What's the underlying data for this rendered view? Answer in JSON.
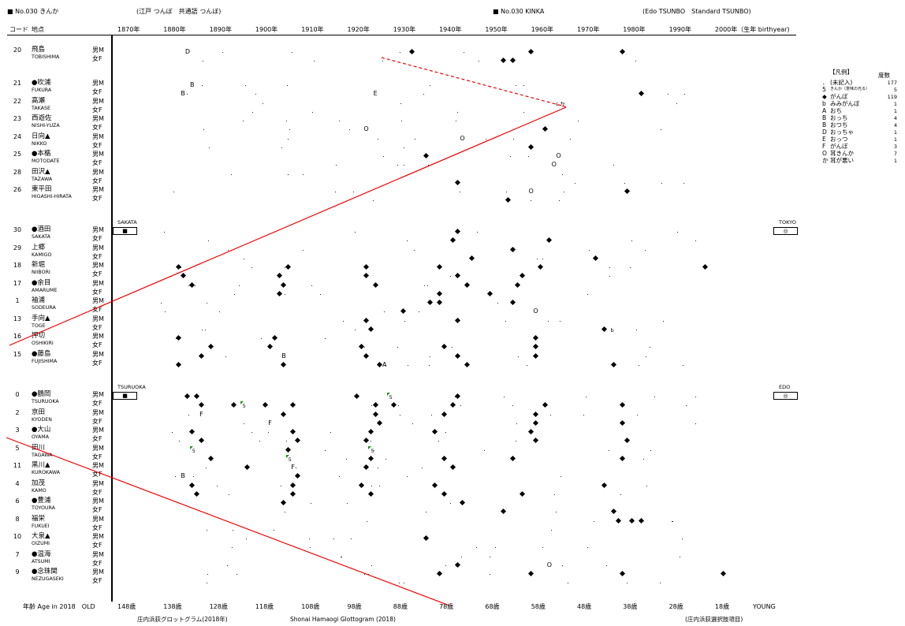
{
  "header": {
    "left_title": "■ No.030 きんか",
    "left_subtitle": "(江戸 つんぼ　共通語 つんぼ)",
    "right_title": "■ No.030 KINKA",
    "right_subtitle": "(Edo TSUNBO　Standard TSUNBO)"
  },
  "col_headers": {
    "code": "コード",
    "place": "地点"
  },
  "year_axis": [
    "1870年",
    "1880年",
    "1890年",
    "1900年",
    "1910年",
    "1920年",
    "1930年",
    "1940年",
    "1950年",
    "1960年",
    "1970年",
    "1980年",
    "1990年",
    "2000年（生年 birthyear)"
  ],
  "age_axis": {
    "prefix": "年齢 Age in 2018　OLD",
    "ticks": [
      "148歳",
      "138歳",
      "128歳",
      "118歳",
      "108歳",
      "98歳",
      "88歳",
      "78歳",
      "68歳",
      "58歳",
      "48歳",
      "38歳",
      "28歳",
      "18歳"
    ],
    "suffix": "YOUNG"
  },
  "footer": {
    "left": "庄内浜荻グロットグラム(2018年)",
    "center": "Shonai Hamaogi Glottogram (2018)",
    "right": "(庄内浜荻選択肢項目)"
  },
  "city_boxes": {
    "sakata": {
      "label": "SAKATA",
      "symbol": "■"
    },
    "tokyo": {
      "label": "TOKYO",
      "symbol": "◎"
    },
    "tsuruoka": {
      "label": "TSURUOKA",
      "symbol": "■"
    },
    "edo": {
      "label": "EDO",
      "symbol": "◎"
    }
  },
  "sex_labels": {
    "male": "男M",
    "female": "女F"
  },
  "legend": {
    "title": "【凡例】",
    "count_header": "度数",
    "items": [
      {
        "symbol": "．",
        "label": "(未記入)",
        "count": "177"
      },
      {
        "symbol": "5",
        "label": "きんか（意味の光る）",
        "count": "5"
      },
      {
        "symbol": "◆",
        "label": "がんぼ",
        "count": "119"
      },
      {
        "symbol": "b",
        "label": "みみがんぼ",
        "count": "1"
      },
      {
        "symbol": "A",
        "label": "おち",
        "count": "1"
      },
      {
        "symbol": "B",
        "label": "おっち",
        "count": "4"
      },
      {
        "symbol": "B",
        "label": "おつち",
        "count": "4"
      },
      {
        "symbol": "D",
        "label": "おっちゃ",
        "count": "1"
      },
      {
        "symbol": "E",
        "label": "おっつ",
        "count": "1"
      },
      {
        "symbol": "F",
        "label": "がんぼ",
        "count": "3"
      },
      {
        "symbol": "O",
        "label": "耳きんか",
        "count": "7"
      },
      {
        "symbol": "か",
        "label": "耳が悪い",
        "count": "1"
      }
    ]
  },
  "groups": [
    {
      "code": "20",
      "name": "飛島",
      "romaji": "TOBISHIMA"
    },
    {
      "code": "21",
      "name": "●吹浦",
      "romaji": "FUKURA"
    },
    {
      "code": "22",
      "name": "高瀬",
      "romaji": "TAKASE"
    },
    {
      "code": "23",
      "name": "西遊佐",
      "romaji": "NISHI-YUZA"
    },
    {
      "code": "24",
      "name": "日向▲",
      "romaji": "NIKKO"
    },
    {
      "code": "25",
      "name": "●本楯",
      "romaji": "MOTODATE"
    },
    {
      "code": "28",
      "name": "田沢▲",
      "romaji": "TAZAWA"
    },
    {
      "code": "26",
      "name": "東平田",
      "romaji": "HIGASHI-HIRATA"
    },
    {
      "code": "30",
      "name": "●酒田",
      "romaji": "SAKATA"
    },
    {
      "code": "29",
      "name": "上郷",
      "romaji": "KAMIGO"
    },
    {
      "code": "18",
      "name": "新堀",
      "romaji": "NIIBORI"
    },
    {
      "code": "17",
      "name": "●余目",
      "romaji": "AMARUME"
    },
    {
      "code": "1",
      "name": "袖浦",
      "romaji": "SODEURA"
    },
    {
      "code": "13",
      "name": "手向▲",
      "romaji": "TOGE"
    },
    {
      "code": "16",
      "name": "押切",
      "romaji": "OSHIKIRI"
    },
    {
      "code": "15",
      "name": "●藤島",
      "romaji": "FUJISHIMA"
    },
    {
      "code": "0",
      "name": "●鶴岡",
      "romaji": "TSURUOKA"
    },
    {
      "code": "2",
      "name": "京田",
      "romaji": "KYODEN"
    },
    {
      "code": "3",
      "name": "●大山",
      "romaji": "OYAMA"
    },
    {
      "code": "5",
      "name": "田川",
      "romaji": "TAGAWA"
    },
    {
      "code": "11",
      "name": "黒川▲",
      "romaji": "KUROKAWA"
    },
    {
      "code": "4",
      "name": "加茂",
      "romaji": "KAMO"
    },
    {
      "code": "6",
      "name": "●豊浦",
      "romaji": "TOYOURA"
    },
    {
      "code": "8",
      "name": "福栄",
      "romaji": "FUKUEI"
    },
    {
      "code": "10",
      "name": "大泉▲",
      "romaji": "OIZUMI"
    },
    {
      "code": "7",
      "name": "●温海",
      "romaji": "ATSUMI"
    },
    {
      "code": "9",
      "name": "●念珠関",
      "romaji": "NEZUGASEKI"
    }
  ],
  "points": [
    {
      "g": 0,
      "r": 0,
      "y": 1886,
      "s": "D"
    },
    {
      "g": 0,
      "r": 0,
      "y": 1935,
      "s": "◆"
    },
    {
      "g": 0,
      "r": 0,
      "y": 1961,
      "s": "◆"
    },
    {
      "g": 0,
      "r": 0,
      "y": 1981,
      "s": "◆"
    },
    {
      "g": 0,
      "r": 1,
      "y": 1955,
      "s": "◆"
    },
    {
      "g": 0,
      "r": 1,
      "y": 1957,
      "s": "◆"
    },
    {
      "g": 1,
      "r": 0,
      "y": 1887,
      "s": "B"
    },
    {
      "g": 1,
      "r": 1,
      "y": 1885,
      "s": "B"
    },
    {
      "g": 1,
      "r": 1,
      "y": 1927,
      "s": "E"
    },
    {
      "g": 1,
      "r": 1,
      "y": 1985,
      "s": "◆"
    },
    {
      "g": 3,
      "r": 1,
      "y": 1925,
      "s": "O"
    },
    {
      "g": 3,
      "r": 1,
      "y": 1964,
      "s": "◆"
    },
    {
      "g": 4,
      "r": 0,
      "y": 1946,
      "s": "O"
    },
    {
      "g": 4,
      "r": 1,
      "y": 1961,
      "s": "◆"
    },
    {
      "g": 5,
      "r": 0,
      "y": 1938,
      "s": "◆"
    },
    {
      "g": 5,
      "r": 0,
      "y": 1967,
      "s": "O"
    },
    {
      "g": 5,
      "r": 1,
      "y": 1966,
      "s": "O"
    },
    {
      "g": 6,
      "r": 1,
      "y": 1945,
      "s": "◆"
    },
    {
      "g": 7,
      "r": 0,
      "y": 1961,
      "s": "O"
    },
    {
      "g": 7,
      "r": 0,
      "y": 1982,
      "s": "◆"
    },
    {
      "g": 7,
      "r": 1,
      "y": 1956,
      "s": "◆"
    },
    {
      "g": 8,
      "r": 0,
      "y": 1945,
      "s": "◆"
    },
    {
      "g": 8,
      "r": 1,
      "y": 1944,
      "s": "◆"
    },
    {
      "g": 8,
      "r": 1,
      "y": 1965,
      "s": "◆"
    },
    {
      "g": 9,
      "r": 0,
      "y": 1957,
      "s": "◆"
    },
    {
      "g": 9,
      "r": 1,
      "y": 1948,
      "s": "◆"
    },
    {
      "g": 9,
      "r": 1,
      "y": 1975,
      "s": "◆"
    },
    {
      "g": 10,
      "r": 0,
      "y": 1884,
      "s": "◆"
    },
    {
      "g": 10,
      "r": 0,
      "y": 1908,
      "s": "◆"
    },
    {
      "g": 10,
      "r": 0,
      "y": 1925,
      "s": "◆"
    },
    {
      "g": 10,
      "r": 0,
      "y": 1941,
      "s": "◆"
    },
    {
      "g": 10,
      "r": 0,
      "y": 1963,
      "s": "◆"
    },
    {
      "g": 10,
      "r": 0,
      "y": 1999,
      "s": "◆"
    },
    {
      "g": 10,
      "r": 1,
      "y": 1885,
      "s": "◆"
    },
    {
      "g": 10,
      "r": 1,
      "y": 1906,
      "s": "◆"
    },
    {
      "g": 10,
      "r": 1,
      "y": 1925,
      "s": "◆"
    },
    {
      "g": 10,
      "r": 1,
      "y": 1945,
      "s": "◆"
    },
    {
      "g": 10,
      "r": 1,
      "y": 1959,
      "s": "◆"
    },
    {
      "g": 11,
      "r": 0,
      "y": 1887,
      "s": "◆"
    },
    {
      "g": 11,
      "r": 0,
      "y": 1907,
      "s": "◆"
    },
    {
      "g": 11,
      "r": 0,
      "y": 1927,
      "s": "◆"
    },
    {
      "g": 11,
      "r": 0,
      "y": 1947,
      "s": "◆"
    },
    {
      "g": 11,
      "r": 0,
      "y": 1958,
      "s": "◆"
    },
    {
      "g": 11,
      "r": 1,
      "y": 1906,
      "s": "◆"
    },
    {
      "g": 11,
      "r": 1,
      "y": 1941,
      "s": "◆"
    },
    {
      "g": 11,
      "r": 1,
      "y": 1952,
      "s": "◆"
    },
    {
      "g": 12,
      "r": 0,
      "y": 1939,
      "s": "◆"
    },
    {
      "g": 12,
      "r": 0,
      "y": 1941,
      "s": "◆"
    },
    {
      "g": 12,
      "r": 0,
      "y": 1957,
      "s": "◆"
    },
    {
      "g": 12,
      "r": 1,
      "y": 1933,
      "s": "◆"
    },
    {
      "g": 12,
      "r": 1,
      "y": 1962,
      "s": "O"
    },
    {
      "g": 13,
      "r": 0,
      "y": 1925,
      "s": "◆"
    },
    {
      "g": 13,
      "r": 0,
      "y": 1945,
      "s": "◆"
    },
    {
      "g": 13,
      "r": 1,
      "y": 1926,
      "s": "◆"
    },
    {
      "g": 13,
      "r": 1,
      "y": 1977,
      "s": "◆"
    },
    {
      "g": 14,
      "r": 0,
      "y": 1884,
      "s": "◆"
    },
    {
      "g": 14,
      "r": 0,
      "y": 1905,
      "s": "◆"
    },
    {
      "g": 14,
      "r": 0,
      "y": 1962,
      "s": "◆"
    },
    {
      "g": 14,
      "r": 1,
      "y": 1891,
      "s": "◆"
    },
    {
      "g": 14,
      "r": 1,
      "y": 1904,
      "s": "◆"
    },
    {
      "g": 14,
      "r": 1,
      "y": 1924,
      "s": "◆"
    },
    {
      "g": 14,
      "r": 1,
      "y": 1942,
      "s": "◆"
    },
    {
      "g": 14,
      "r": 1,
      "y": 1962,
      "s": "◆"
    },
    {
      "g": 15,
      "r": 0,
      "y": 1889,
      "s": "◆"
    },
    {
      "g": 15,
      "r": 0,
      "y": 1907,
      "s": "B"
    },
    {
      "g": 15,
      "r": 0,
      "y": 1925,
      "s": "◆"
    },
    {
      "g": 15,
      "r": 0,
      "y": 1945,
      "s": "◆"
    },
    {
      "g": 15,
      "r": 0,
      "y": 1962,
      "s": "◆"
    },
    {
      "g": 15,
      "r": 1,
      "y": 1884,
      "s": "◆"
    },
    {
      "g": 15,
      "r": 1,
      "y": 1907,
      "s": "◆"
    },
    {
      "g": 15,
      "r": 1,
      "y": 1928,
      "s": "◆"
    },
    {
      "g": 15,
      "r": 1,
      "y": 1929,
      "s": "A"
    },
    {
      "g": 15,
      "r": 1,
      "y": 1947,
      "s": "◆"
    },
    {
      "g": 15,
      "r": 1,
      "y": 1979,
      "s": "◆"
    },
    {
      "g": 16,
      "r": 0,
      "y": 1886,
      "s": "◆"
    },
    {
      "g": 16,
      "r": 0,
      "y": 1888,
      "s": "◆"
    },
    {
      "g": 16,
      "r": 0,
      "y": 1923,
      "s": "◆"
    },
    {
      "g": 16,
      "r": 0,
      "y": 1930,
      "s": "5"
    },
    {
      "g": 16,
      "r": 0,
      "y": 1945,
      "s": "◆"
    },
    {
      "g": 16,
      "r": 1,
      "y": 1889,
      "s": "◆"
    },
    {
      "g": 16,
      "r": 1,
      "y": 1896,
      "s": "◆"
    },
    {
      "g": 16,
      "r": 1,
      "y": 1898,
      "s": "5"
    },
    {
      "g": 16,
      "r": 1,
      "y": 1903,
      "s": "◆"
    },
    {
      "g": 16,
      "r": 1,
      "y": 1909,
      "s": "◆"
    },
    {
      "g": 16,
      "r": 1,
      "y": 1927,
      "s": "◆"
    },
    {
      "g": 16,
      "r": 1,
      "y": 1931,
      "s": "◆"
    },
    {
      "g": 16,
      "r": 1,
      "y": 1944,
      "s": "◆"
    },
    {
      "g": 16,
      "r": 1,
      "y": 1964,
      "s": "◆"
    },
    {
      "g": 16,
      "r": 1,
      "y": 1981,
      "s": "◆"
    },
    {
      "g": 17,
      "r": 0,
      "y": 1889,
      "s": "F"
    },
    {
      "g": 17,
      "r": 0,
      "y": 1907,
      "s": "◆"
    },
    {
      "g": 17,
      "r": 0,
      "y": 1927,
      "s": "◆"
    },
    {
      "g": 17,
      "r": 0,
      "y": 1942,
      "s": "◆"
    },
    {
      "g": 17,
      "r": 0,
      "y": 1962,
      "s": "◆"
    },
    {
      "g": 17,
      "r": 1,
      "y": 1904,
      "s": "F"
    },
    {
      "g": 17,
      "r": 1,
      "y": 1928,
      "s": "◆"
    },
    {
      "g": 17,
      "r": 1,
      "y": 1962,
      "s": "◆"
    },
    {
      "g": 17,
      "r": 1,
      "y": 1981,
      "s": "◆"
    },
    {
      "g": 18,
      "r": 0,
      "y": 1887,
      "s": "◆"
    },
    {
      "g": 18,
      "r": 0,
      "y": 1909,
      "s": "◆"
    },
    {
      "g": 18,
      "r": 0,
      "y": 1926,
      "s": "◆"
    },
    {
      "g": 18,
      "r": 0,
      "y": 1940,
      "s": "◆"
    },
    {
      "g": 18,
      "r": 0,
      "y": 1961,
      "s": "◆"
    },
    {
      "g": 18,
      "r": 1,
      "y": 1889,
      "s": "◆"
    },
    {
      "g": 18,
      "r": 1,
      "y": 1910,
      "s": "◆"
    },
    {
      "g": 18,
      "r": 1,
      "y": 1925,
      "s": "◆"
    },
    {
      "g": 18,
      "r": 1,
      "y": 1962,
      "s": "◆"
    },
    {
      "g": 18,
      "r": 1,
      "y": 1982,
      "s": "◆"
    },
    {
      "g": 19,
      "r": 0,
      "y": 1887,
      "s": "5"
    },
    {
      "g": 19,
      "r": 0,
      "y": 1908,
      "s": "◆"
    },
    {
      "g": 19,
      "r": 0,
      "y": 1926,
      "s": "5"
    },
    {
      "g": 19,
      "r": 1,
      "y": 1891,
      "s": "◆"
    },
    {
      "g": 19,
      "r": 1,
      "y": 1908,
      "s": "5"
    },
    {
      "g": 19,
      "r": 1,
      "y": 1926,
      "s": "◆"
    },
    {
      "g": 19,
      "r": 1,
      "y": 1942,
      "s": "◆"
    },
    {
      "g": 19,
      "r": 1,
      "y": 1957,
      "s": "◆"
    },
    {
      "g": 19,
      "r": 1,
      "y": 1981,
      "s": "◆"
    },
    {
      "g": 20,
      "r": 0,
      "y": 1899,
      "s": "◆"
    },
    {
      "g": 20,
      "r": 0,
      "y": 1909,
      "s": "F"
    },
    {
      "g": 20,
      "r": 0,
      "y": 1925,
      "s": "◆"
    },
    {
      "g": 20,
      "r": 0,
      "y": 1944,
      "s": "◆"
    },
    {
      "g": 20,
      "r": 1,
      "y": 1885,
      "s": "B"
    },
    {
      "g": 20,
      "r": 1,
      "y": 1910,
      "s": "◆"
    },
    {
      "g": 21,
      "r": 0,
      "y": 1887,
      "s": "◆"
    },
    {
      "g": 21,
      "r": 0,
      "y": 1909,
      "s": "◆"
    },
    {
      "g": 21,
      "r": 0,
      "y": 1924,
      "s": "◆"
    },
    {
      "g": 21,
      "r": 0,
      "y": 1940,
      "s": "◆"
    },
    {
      "g": 21,
      "r": 0,
      "y": 1977,
      "s": "◆"
    },
    {
      "g": 21,
      "r": 1,
      "y": 1888,
      "s": "◆"
    },
    {
      "g": 21,
      "r": 1,
      "y": 1909,
      "s": "◆"
    },
    {
      "g": 21,
      "r": 1,
      "y": 1926,
      "s": "◆"
    },
    {
      "g": 21,
      "r": 1,
      "y": 1942,
      "s": "◆"
    },
    {
      "g": 21,
      "r": 1,
      "y": 1959,
      "s": "◆"
    },
    {
      "g": 22,
      "r": 0,
      "y": 1907,
      "s": "◆"
    },
    {
      "g": 22,
      "r": 0,
      "y": 1946,
      "s": "◆"
    },
    {
      "g": 22,
      "r": 1,
      "y": 1955,
      "s": "◆"
    },
    {
      "g": 22,
      "r": 1,
      "y": 1979,
      "s": "◆"
    },
    {
      "g": 23,
      "r": 0,
      "y": 1980,
      "s": "◆"
    },
    {
      "g": 23,
      "r": 0,
      "y": 1983,
      "s": "◆"
    },
    {
      "g": 23,
      "r": 0,
      "y": 1985,
      "s": "◆"
    },
    {
      "g": 24,
      "r": 0,
      "y": 1938,
      "s": "◆"
    },
    {
      "g": 25,
      "r": 1,
      "y": 1945,
      "s": "◆"
    },
    {
      "g": 25,
      "r": 1,
      "y": 1965,
      "s": "O"
    },
    {
      "g": 26,
      "r": 0,
      "y": 1941,
      "s": "◆"
    },
    {
      "g": 26,
      "r": 0,
      "y": 1961,
      "s": "◆"
    },
    {
      "g": 26,
      "r": 0,
      "y": 1981,
      "s": "◆"
    },
    {
      "g": 26,
      "r": 0,
      "y": 2003,
      "s": "◆"
    }
  ],
  "annotations": [
    {
      "g": 2,
      "r": 0,
      "y": 1966,
      "s": "c か"
    },
    {
      "g": 13,
      "r": 1,
      "y": 1978,
      "s": "b"
    },
    {
      "g": 16,
      "r": 1,
      "y": 1898,
      "s": "5"
    }
  ]
}
